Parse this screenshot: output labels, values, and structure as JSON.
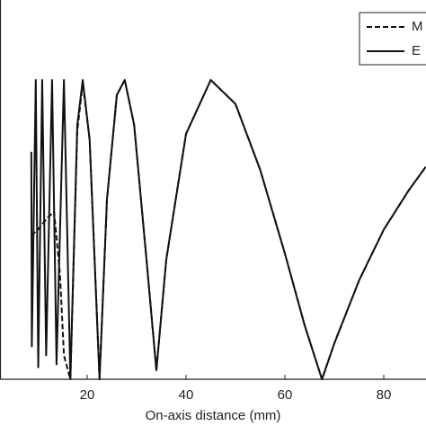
{
  "chart_data": {
    "type": "line",
    "xlabel": "On-axis distance (mm)",
    "xlim": [
      0,
      88.5
    ],
    "xticks": [
      20,
      40,
      60,
      80
    ],
    "ylim": [
      0,
      1.27
    ],
    "legend": "upper right",
    "series": [
      {
        "name": "M",
        "color": "#111111",
        "dash": true,
        "x": [
          8.7,
          10,
          12,
          13.3,
          14.5,
          15.3,
          16.6,
          18.0,
          19.1,
          20.5,
          22.5,
          24,
          26,
          27.6,
          29.5,
          32,
          34,
          36,
          40,
          45,
          50,
          55,
          60,
          64,
          67.5,
          70,
          75,
          80,
          85,
          88.5
        ],
        "values": [
          0.48,
          0.5,
          0.54,
          0.56,
          0.35,
          0.08,
          0.0,
          0.83,
          0.99,
          0.8,
          0.0,
          0.6,
          0.95,
          1.0,
          0.85,
          0.4,
          0.03,
          0.4,
          0.82,
          1.0,
          0.92,
          0.7,
          0.42,
          0.18,
          0.0,
          0.12,
          0.33,
          0.5,
          0.63,
          0.71
        ]
      },
      {
        "name": "E",
        "color": "#111111",
        "dash": false,
        "x": [
          8.7,
          8.8,
          9.6,
          10.1,
          10.9,
          11.7,
          12.9,
          13.8,
          15.3,
          16.6,
          18.0,
          19.1,
          20.5,
          22.5,
          24,
          26,
          27.6,
          29.5,
          32,
          34,
          36,
          40,
          45,
          50,
          55,
          60,
          64,
          67.5,
          70,
          75,
          80,
          85,
          88.5
        ],
        "values": [
          0.76,
          0.11,
          1.0,
          0.04,
          1.0,
          0.08,
          1.0,
          0.05,
          1.0,
          0.0,
          0.85,
          1.0,
          0.8,
          0.0,
          0.6,
          0.95,
          1.0,
          0.85,
          0.4,
          0.03,
          0.4,
          0.82,
          1.0,
          0.92,
          0.7,
          0.42,
          0.18,
          0.0,
          0.12,
          0.33,
          0.5,
          0.63,
          0.71
        ]
      }
    ]
  }
}
